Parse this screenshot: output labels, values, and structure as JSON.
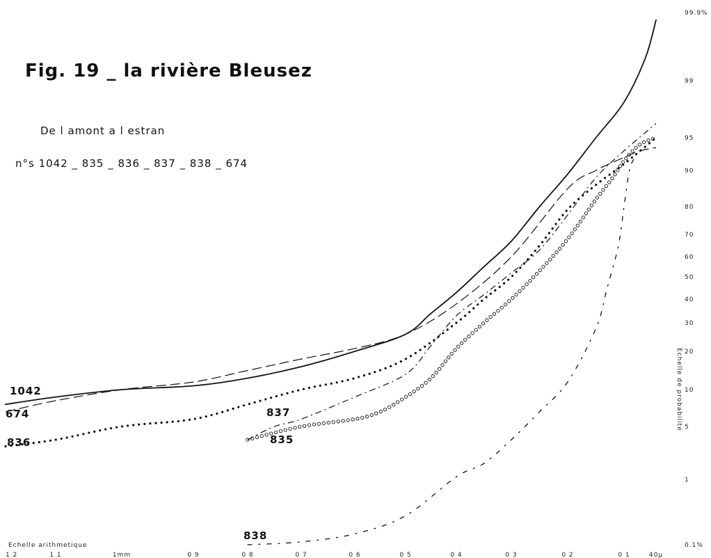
{
  "chart_data": {
    "type": "line",
    "title": "Fig. 19 _ la rivière Bleusez",
    "subtitle": "De l amont a l estran",
    "samples_line": "n°s 1042 _ 835 _ 836 _ 837 _ 838 _ 674",
    "xlabel": "Echelle arithmetique",
    "ylabel": "Echelle de probabilite",
    "x_ticks": [
      "1 2",
      "1 1",
      "1mm",
      "0 9",
      "0 8",
      "0 7",
      "0 6",
      "0 5",
      "0 4",
      "0 3",
      "0 2",
      "0 1",
      "40µ"
    ],
    "x_tick_values": [
      1.2,
      1.1,
      1.0,
      0.9,
      0.8,
      0.7,
      0.6,
      0.5,
      0.4,
      0.3,
      0.2,
      0.1,
      0.04
    ],
    "xlim": [
      1.2,
      0.04
    ],
    "y_scale": "probability",
    "y_ticks": [
      "99.9%",
      "99",
      "95",
      "90",
      "80",
      "70",
      "60",
      "50",
      "40",
      "30",
      "20",
      "10",
      "5",
      "1",
      "0.1%"
    ],
    "y_tick_values": [
      99.9,
      99,
      95,
      90,
      80,
      70,
      60,
      50,
      40,
      30,
      20,
      10,
      5,
      1,
      0.1
    ],
    "ylim": [
      0.1,
      99.9
    ],
    "series": [
      {
        "name": "1042",
        "style": "solid",
        "x": [
          1.2,
          1.1,
          1.0,
          0.9,
          0.8,
          0.7,
          0.6,
          0.5,
          0.45,
          0.4,
          0.35,
          0.3,
          0.25,
          0.2,
          0.15,
          0.1,
          0.06,
          0.04
        ],
        "y": [
          8,
          9,
          10,
          11,
          13,
          16,
          20,
          26,
          34,
          43,
          55,
          67,
          80,
          89,
          95,
          97.5,
          99.3,
          99.8
        ]
      },
      {
        "name": "674",
        "style": "dashed",
        "x": [
          1.2,
          1.1,
          1.0,
          0.9,
          0.8,
          0.7,
          0.6,
          0.5,
          0.4,
          0.3,
          0.2,
          0.15,
          0.1,
          0.07,
          0.04
        ],
        "y": [
          7,
          8.5,
          10,
          12,
          15,
          18,
          21,
          26,
          38,
          60,
          85,
          90,
          92,
          93,
          93.5
        ]
      },
      {
        "name": "836",
        "style": "dotted",
        "x": [
          1.2,
          1.1,
          1.0,
          0.9,
          0.8,
          0.7,
          0.6,
          0.5,
          0.4,
          0.35,
          0.3,
          0.25,
          0.2,
          0.15,
          0.1,
          0.04
        ],
        "y": [
          3.5,
          4,
          5,
          6,
          8,
          10,
          13,
          18,
          30,
          40,
          50,
          65,
          79,
          86,
          91,
          95
        ]
      },
      {
        "name": "837",
        "style": "dash-dot",
        "x": [
          0.8,
          0.75,
          0.7,
          0.6,
          0.5,
          0.45,
          0.4,
          0.35,
          0.3,
          0.25,
          0.2,
          0.15,
          0.1,
          0.04
        ],
        "y": [
          4,
          5,
          6,
          9,
          14,
          22,
          33,
          42,
          52,
          63,
          77,
          88,
          93,
          96
        ]
      },
      {
        "name": "835",
        "style": "circles",
        "x": [
          0.8,
          0.7,
          0.6,
          0.55,
          0.5,
          0.45,
          0.4,
          0.35,
          0.3,
          0.25,
          0.2,
          0.15,
          0.12,
          0.1,
          0.07,
          0.04
        ],
        "y": [
          4,
          5,
          6,
          7,
          9,
          13,
          21,
          30,
          40,
          53,
          68,
          82,
          88,
          91.5,
          94,
          95
        ]
      },
      {
        "name": "838",
        "style": "dot-dash-sparse",
        "x": [
          0.8,
          0.7,
          0.6,
          0.5,
          0.4,
          0.35,
          0.3,
          0.25,
          0.2,
          0.15,
          0.13,
          0.11,
          0.1,
          0.09,
          0.08
        ],
        "y": [
          0.1,
          0.14,
          0.25,
          0.5,
          1.2,
          2.2,
          4,
          7,
          12,
          28,
          45,
          65,
          80,
          90,
          92
        ]
      }
    ]
  }
}
